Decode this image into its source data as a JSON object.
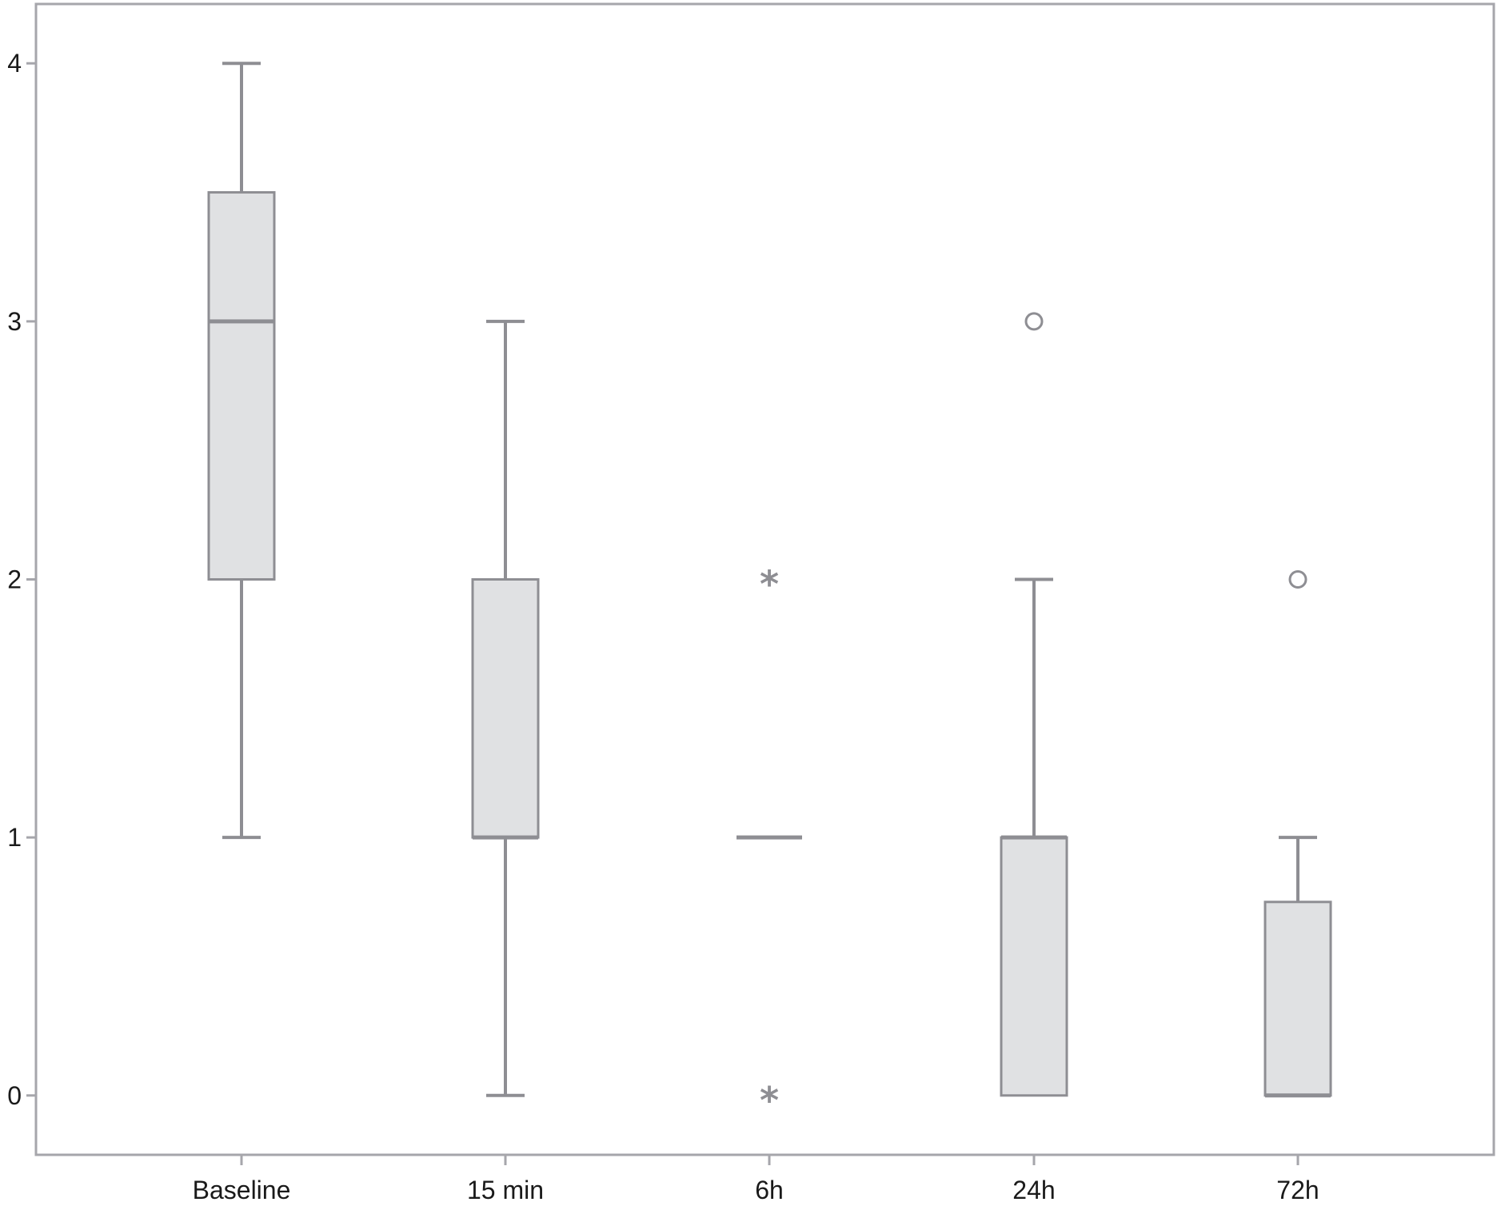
{
  "chart_data": {
    "type": "box",
    "title": "",
    "xlabel": "",
    "ylabel": "",
    "categories": [
      "Baseline",
      "15 min",
      "6h",
      "24h",
      "72h"
    ],
    "y_ticks": [
      0,
      1,
      2,
      3,
      4
    ],
    "ylim": [
      -0.23,
      4.23
    ],
    "grid": false,
    "legend": "none",
    "colors": {
      "box_fill": "#e0e1e3",
      "box_stroke": "#8e8e93",
      "frame": "#a6a6ab",
      "text": "#1a1a1a"
    },
    "boxes": [
      {
        "category": "Baseline",
        "whisker_low": 1,
        "q1": 2,
        "median": 3,
        "q3": 3.5,
        "whisker_high": 4,
        "outliers": [],
        "extremes": []
      },
      {
        "category": "15 min",
        "whisker_low": 0,
        "q1": 1,
        "median": 1,
        "q3": 2,
        "whisker_high": 3,
        "outliers": [],
        "extremes": []
      },
      {
        "category": "6h",
        "whisker_low": 1,
        "q1": 1,
        "median": 1,
        "q3": 1,
        "whisker_high": 1,
        "outliers": [],
        "extremes": [
          2,
          0
        ]
      },
      {
        "category": "24h",
        "whisker_low": 0,
        "q1": 0,
        "median": 1,
        "q3": 1,
        "whisker_high": 2,
        "outliers": [
          3
        ],
        "extremes": []
      },
      {
        "category": "72h",
        "whisker_low": 0,
        "q1": 0,
        "median": 0,
        "q3": 0.75,
        "whisker_high": 1,
        "outliers": [
          2
        ],
        "extremes": []
      }
    ]
  }
}
